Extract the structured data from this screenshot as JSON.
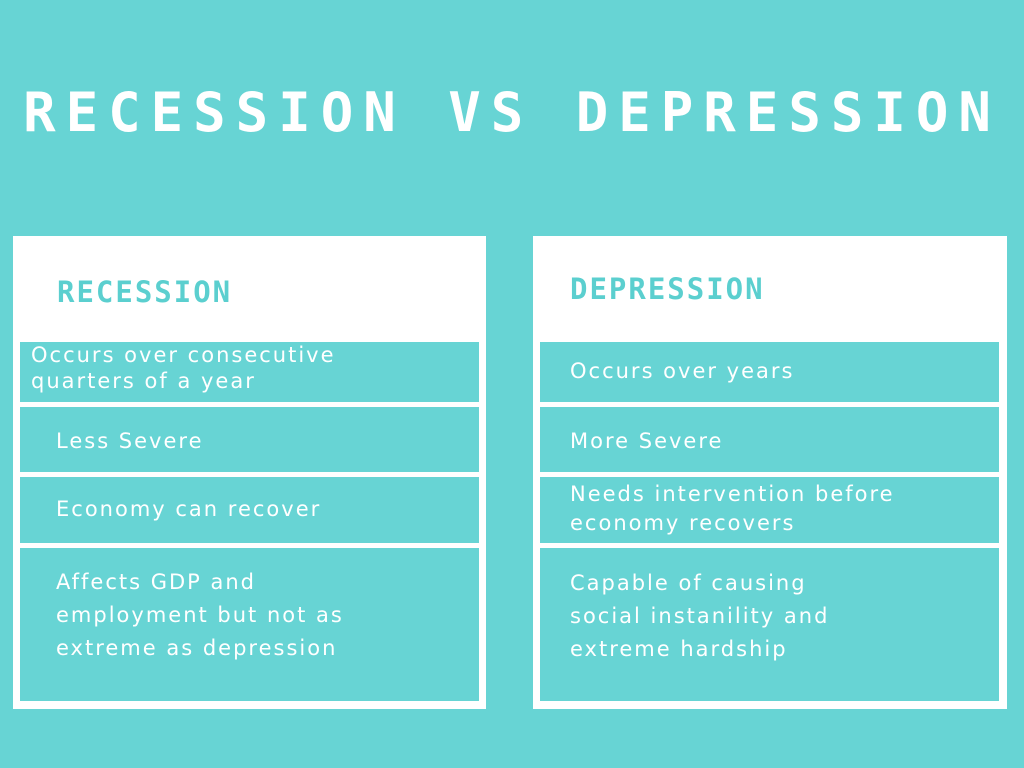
{
  "title": "RECESSION VS DEPRESSION",
  "colors": {
    "background": "#67d4d4",
    "card": "#ffffff",
    "heading_accent": "#5bcfcf",
    "text_light": "#ffffff"
  },
  "recession": {
    "heading": "RECESSION",
    "items": [
      [
        "Occurs over consecutive",
        "quarters of a year"
      ],
      [
        "Less Severe"
      ],
      [
        "Economy can recover"
      ],
      [
        "Affects GDP and",
        "employment but not as",
        "extreme as depression"
      ]
    ]
  },
  "depression": {
    "heading": "DEPRESSION",
    "items": [
      [
        "Occurs over years"
      ],
      [
        "More Severe"
      ],
      [
        "Needs intervention before",
        "economy recovers"
      ],
      [
        "Capable of causing",
        "social instanility and",
        "extreme hardship"
      ]
    ]
  }
}
